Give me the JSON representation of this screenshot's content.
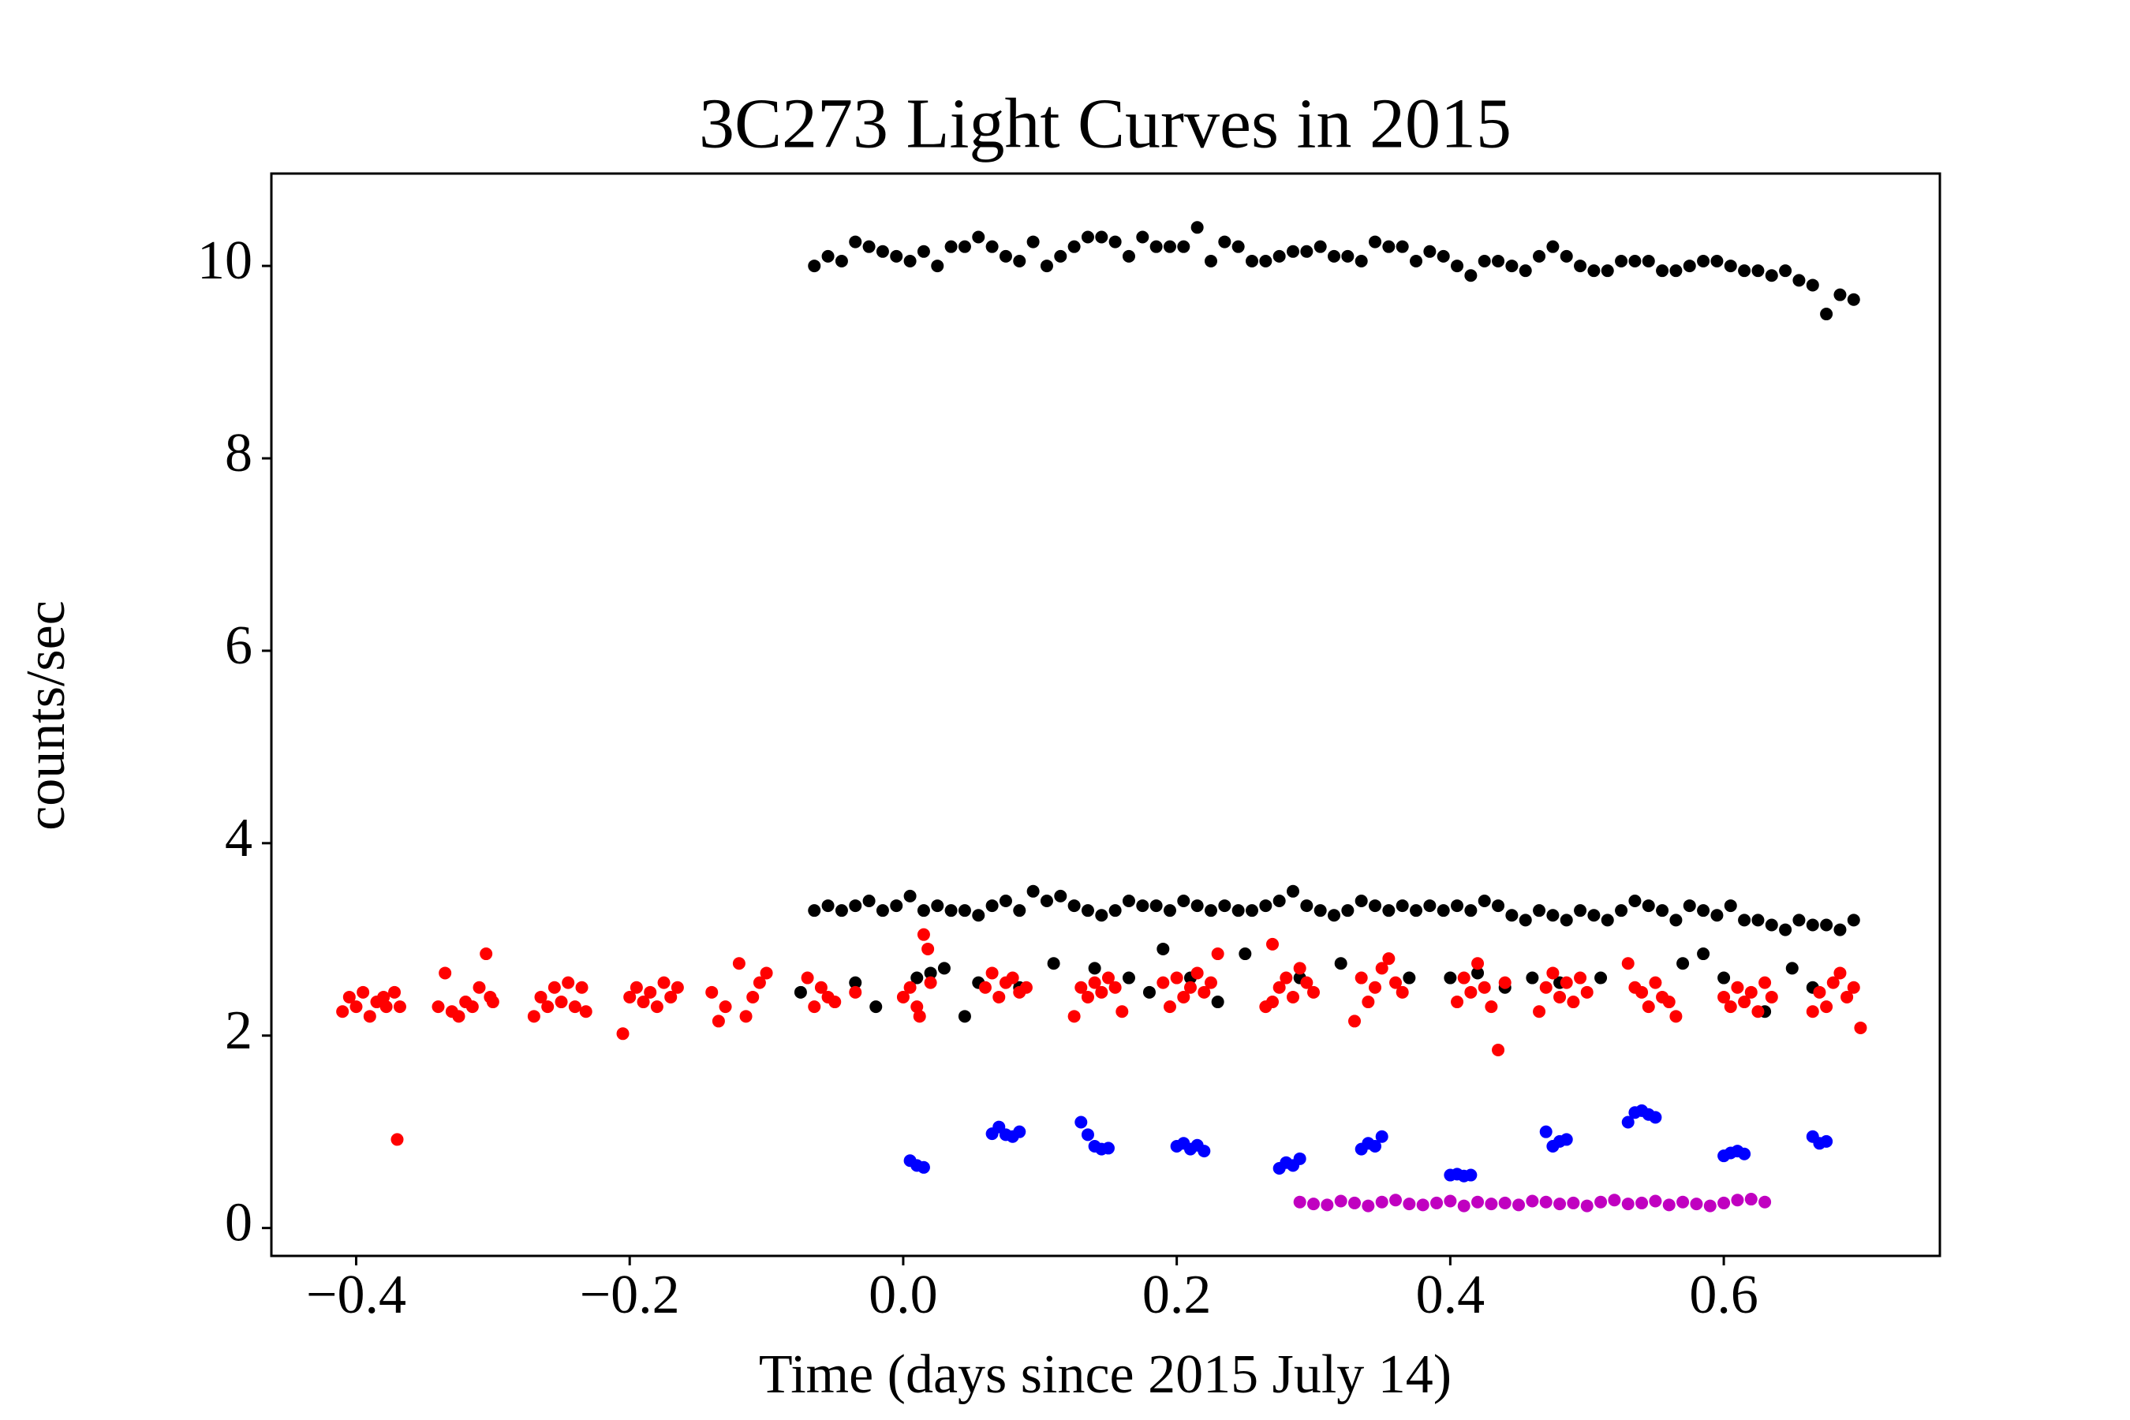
{
  "chart_data": {
    "type": "scatter",
    "title": "3C273 Light Curves in 2015",
    "xlabel": "Time (days since 2015 July 14)",
    "ylabel": "counts/sec",
    "xlim": [
      -0.462,
      0.758
    ],
    "ylim": [
      -0.29,
      10.96
    ],
    "xticks": [
      {
        "value": -0.4,
        "label": "−0.4"
      },
      {
        "value": -0.2,
        "label": "−0.2"
      },
      {
        "value": 0,
        "label": "0.0"
      },
      0.2,
      0.4,
      0.6
    ],
    "yticks": [
      0,
      2,
      4,
      6,
      8,
      10
    ],
    "grid": false,
    "series": [
      {
        "color": "#000000",
        "x": [
          -0.065,
          -0.055,
          -0.045,
          -0.035,
          -0.025,
          -0.015,
          -0.005,
          0.005,
          0.015,
          0.025,
          0.035,
          0.045,
          0.055,
          0.065,
          0.075,
          0.085,
          0.095,
          0.105,
          0.115,
          0.125,
          0.135,
          0.145,
          0.155,
          0.165,
          0.175,
          0.185,
          0.195,
          0.205,
          0.215,
          0.225,
          0.235,
          0.245,
          0.255,
          0.265,
          0.275,
          0.285,
          0.295,
          0.305,
          0.315,
          0.325,
          0.335,
          0.345,
          0.355,
          0.365,
          0.375,
          0.385,
          0.395,
          0.405,
          0.415,
          0.425,
          0.435,
          0.445,
          0.455,
          0.465,
          0.475,
          0.485,
          0.495,
          0.505,
          0.515,
          0.525,
          0.535,
          0.545,
          0.555,
          0.565,
          0.575,
          0.585,
          0.595,
          0.605,
          0.615,
          0.625,
          0.635,
          0.645,
          0.655,
          0.665,
          0.675,
          0.685,
          0.695
        ],
        "values": [
          10.0,
          10.1,
          10.05,
          10.25,
          10.2,
          10.15,
          10.1,
          10.05,
          10.15,
          10.0,
          10.2,
          10.2,
          10.3,
          10.2,
          10.1,
          10.05,
          10.25,
          10.0,
          10.1,
          10.2,
          10.3,
          10.3,
          10.25,
          10.1,
          10.3,
          10.2,
          10.2,
          10.2,
          10.4,
          10.05,
          10.25,
          10.2,
          10.05,
          10.05,
          10.1,
          10.15,
          10.15,
          10.2,
          10.1,
          10.1,
          10.05,
          10.25,
          10.2,
          10.2,
          10.05,
          10.15,
          10.1,
          10.0,
          9.9,
          10.05,
          10.05,
          10.0,
          9.95,
          10.1,
          10.2,
          10.1,
          10.0,
          9.95,
          9.95,
          10.05,
          10.05,
          10.05,
          9.95,
          9.95,
          10.0,
          10.05,
          10.05,
          10.0,
          9.95,
          9.95,
          9.9,
          9.95,
          9.85,
          9.8,
          9.5,
          9.7,
          9.65
        ]
      },
      {
        "color": "#000000",
        "x": [
          -0.065,
          -0.055,
          -0.045,
          -0.035,
          -0.025,
          -0.015,
          -0.005,
          0.005,
          0.015,
          0.025,
          0.035,
          0.045,
          0.055,
          0.065,
          0.075,
          0.085,
          0.095,
          0.105,
          0.115,
          0.125,
          0.135,
          0.145,
          0.155,
          0.165,
          0.175,
          0.185,
          0.195,
          0.205,
          0.215,
          0.225,
          0.235,
          0.245,
          0.255,
          0.265,
          0.275,
          0.285,
          0.295,
          0.305,
          0.315,
          0.325,
          0.335,
          0.345,
          0.355,
          0.365,
          0.375,
          0.385,
          0.395,
          0.405,
          0.415,
          0.425,
          0.435,
          0.445,
          0.455,
          0.465,
          0.475,
          0.485,
          0.495,
          0.505,
          0.515,
          0.525,
          0.535,
          0.545,
          0.555,
          0.565,
          0.575,
          0.585,
          0.595,
          0.605,
          0.615,
          0.625,
          0.635,
          0.645,
          0.655,
          0.665,
          0.675,
          0.685,
          0.695
        ],
        "values": [
          3.3,
          3.35,
          3.3,
          3.35,
          3.4,
          3.3,
          3.35,
          3.45,
          3.3,
          3.35,
          3.3,
          3.3,
          3.25,
          3.35,
          3.4,
          3.3,
          3.5,
          3.4,
          3.45,
          3.35,
          3.3,
          3.25,
          3.3,
          3.4,
          3.35,
          3.35,
          3.3,
          3.4,
          3.35,
          3.3,
          3.35,
          3.3,
          3.3,
          3.35,
          3.4,
          3.5,
          3.35,
          3.3,
          3.25,
          3.3,
          3.4,
          3.35,
          3.3,
          3.35,
          3.3,
          3.35,
          3.3,
          3.35,
          3.3,
          3.4,
          3.35,
          3.25,
          3.2,
          3.3,
          3.25,
          3.2,
          3.3,
          3.25,
          3.2,
          3.3,
          3.4,
          3.35,
          3.3,
          3.2,
          3.35,
          3.3,
          3.25,
          3.35,
          3.2,
          3.2,
          3.15,
          3.1,
          3.2,
          3.15,
          3.15,
          3.1,
          3.2
        ]
      },
      {
        "color": "#000000",
        "x": [
          -0.075,
          -0.035,
          -0.02,
          0.01,
          0.02,
          0.03,
          0.045,
          0.055,
          0.085,
          0.11,
          0.14,
          0.165,
          0.18,
          0.19,
          0.21,
          0.23,
          0.25,
          0.29,
          0.32,
          0.37,
          0.4,
          0.42,
          0.44,
          0.46,
          0.48,
          0.51,
          0.57,
          0.585,
          0.6,
          0.63,
          0.65,
          0.665
        ],
        "values": [
          2.45,
          2.55,
          2.3,
          2.6,
          2.65,
          2.7,
          2.2,
          2.55,
          2.5,
          2.75,
          2.7,
          2.6,
          2.45,
          2.9,
          2.6,
          2.35,
          2.85,
          2.6,
          2.75,
          2.6,
          2.6,
          2.65,
          2.5,
          2.6,
          2.55,
          2.6,
          2.75,
          2.85,
          2.6,
          2.25,
          2.7,
          2.5
        ]
      },
      {
        "color": "#ff0000",
        "x": [
          -0.41,
          -0.405,
          -0.4,
          -0.395,
          -0.39,
          -0.385,
          -0.38,
          -0.378,
          -0.372,
          -0.368,
          -0.37,
          -0.34,
          -0.335,
          -0.33,
          -0.325,
          -0.32,
          -0.315,
          -0.31,
          -0.305,
          -0.302,
          -0.3,
          -0.27,
          -0.265,
          -0.26,
          -0.255,
          -0.25,
          -0.245,
          -0.24,
          -0.235,
          -0.232,
          -0.205,
          -0.2,
          -0.195,
          -0.19,
          -0.185,
          -0.18,
          -0.175,
          -0.17,
          -0.165,
          -0.14,
          -0.135,
          -0.13,
          -0.12,
          -0.115,
          -0.11,
          -0.105,
          -0.1,
          -0.07,
          -0.065,
          -0.06,
          -0.055,
          -0.05,
          -0.035,
          0.0,
          0.005,
          0.01,
          0.015,
          0.02,
          0.012,
          0.018,
          0.06,
          0.065,
          0.07,
          0.075,
          0.08,
          0.085,
          0.09,
          0.125,
          0.13,
          0.135,
          0.14,
          0.145,
          0.15,
          0.155,
          0.16,
          0.19,
          0.195,
          0.2,
          0.205,
          0.21,
          0.215,
          0.22,
          0.225,
          0.23,
          0.265,
          0.27,
          0.275,
          0.28,
          0.285,
          0.29,
          0.295,
          0.3,
          0.27,
          0.33,
          0.335,
          0.34,
          0.345,
          0.35,
          0.355,
          0.36,
          0.365,
          0.405,
          0.41,
          0.415,
          0.42,
          0.425,
          0.43,
          0.435,
          0.44,
          0.465,
          0.47,
          0.475,
          0.48,
          0.485,
          0.49,
          0.495,
          0.5,
          0.53,
          0.535,
          0.54,
          0.545,
          0.55,
          0.555,
          0.56,
          0.565,
          0.6,
          0.605,
          0.61,
          0.615,
          0.62,
          0.625,
          0.63,
          0.635,
          0.665,
          0.67,
          0.675,
          0.68,
          0.685,
          0.69,
          0.695,
          0.7
        ],
        "values": [
          2.25,
          2.4,
          2.3,
          2.45,
          2.2,
          2.35,
          2.4,
          2.3,
          2.45,
          2.3,
          0.92,
          2.3,
          2.65,
          2.25,
          2.2,
          2.35,
          2.3,
          2.5,
          2.85,
          2.4,
          2.35,
          2.2,
          2.4,
          2.3,
          2.5,
          2.35,
          2.55,
          2.3,
          2.5,
          2.25,
          2.02,
          2.4,
          2.5,
          2.35,
          2.45,
          2.3,
          2.55,
          2.4,
          2.5,
          2.45,
          2.15,
          2.3,
          2.75,
          2.2,
          2.4,
          2.55,
          2.65,
          2.6,
          2.3,
          2.5,
          2.4,
          2.35,
          2.45,
          2.4,
          2.5,
          2.3,
          3.05,
          2.55,
          2.2,
          2.9,
          2.5,
          2.65,
          2.4,
          2.55,
          2.6,
          2.45,
          2.5,
          2.2,
          2.5,
          2.4,
          2.55,
          2.45,
          2.6,
          2.5,
          2.25,
          2.55,
          2.3,
          2.6,
          2.4,
          2.5,
          2.65,
          2.45,
          2.55,
          2.85,
          2.3,
          2.95,
          2.5,
          2.6,
          2.4,
          2.7,
          2.55,
          2.45,
          2.35,
          2.15,
          2.6,
          2.35,
          2.5,
          2.7,
          2.8,
          2.55,
          2.45,
          2.35,
          2.6,
          2.45,
          2.75,
          2.5,
          2.3,
          1.85,
          2.55,
          2.25,
          2.5,
          2.65,
          2.4,
          2.55,
          2.35,
          2.6,
          2.45,
          2.75,
          2.5,
          2.45,
          2.3,
          2.55,
          2.4,
          2.35,
          2.2,
          2.4,
          2.3,
          2.5,
          2.35,
          2.45,
          2.25,
          2.55,
          2.4,
          2.25,
          2.45,
          2.3,
          2.55,
          2.65,
          2.4,
          2.5,
          2.08
        ]
      },
      {
        "color": "#0000ff",
        "x": [
          0.005,
          0.01,
          0.015,
          0.065,
          0.07,
          0.075,
          0.08,
          0.085,
          0.13,
          0.135,
          0.14,
          0.145,
          0.15,
          0.2,
          0.205,
          0.21,
          0.215,
          0.22,
          0.275,
          0.28,
          0.285,
          0.29,
          0.335,
          0.34,
          0.345,
          0.35,
          0.4,
          0.405,
          0.41,
          0.415,
          0.47,
          0.475,
          0.48,
          0.485,
          0.53,
          0.535,
          0.54,
          0.545,
          0.55,
          0.6,
          0.605,
          0.61,
          0.615,
          0.665,
          0.67,
          0.675
        ],
        "values": [
          0.7,
          0.65,
          0.63,
          0.98,
          1.05,
          0.97,
          0.95,
          1.0,
          1.1,
          0.97,
          0.85,
          0.82,
          0.83,
          0.85,
          0.88,
          0.82,
          0.86,
          0.8,
          0.62,
          0.68,
          0.65,
          0.72,
          0.82,
          0.88,
          0.85,
          0.95,
          0.55,
          0.56,
          0.54,
          0.55,
          1.0,
          0.85,
          0.9,
          0.92,
          1.1,
          1.2,
          1.22,
          1.18,
          1.15,
          0.75,
          0.78,
          0.8,
          0.77,
          0.95,
          0.88,
          0.9
        ]
      },
      {
        "color": "#c000c0",
        "x": [
          0.29,
          0.3,
          0.31,
          0.32,
          0.33,
          0.34,
          0.35,
          0.36,
          0.37,
          0.38,
          0.39,
          0.4,
          0.41,
          0.42,
          0.43,
          0.44,
          0.45,
          0.46,
          0.47,
          0.48,
          0.49,
          0.5,
          0.51,
          0.52,
          0.53,
          0.54,
          0.55,
          0.56,
          0.57,
          0.58,
          0.59,
          0.6,
          0.61,
          0.62,
          0.63
        ],
        "values": [
          0.27,
          0.25,
          0.24,
          0.28,
          0.26,
          0.23,
          0.27,
          0.29,
          0.25,
          0.24,
          0.26,
          0.28,
          0.23,
          0.27,
          0.25,
          0.26,
          0.24,
          0.28,
          0.27,
          0.25,
          0.26,
          0.23,
          0.27,
          0.29,
          0.25,
          0.26,
          0.28,
          0.24,
          0.27,
          0.25,
          0.23,
          0.26,
          0.29,
          0.3,
          0.27
        ]
      }
    ]
  }
}
